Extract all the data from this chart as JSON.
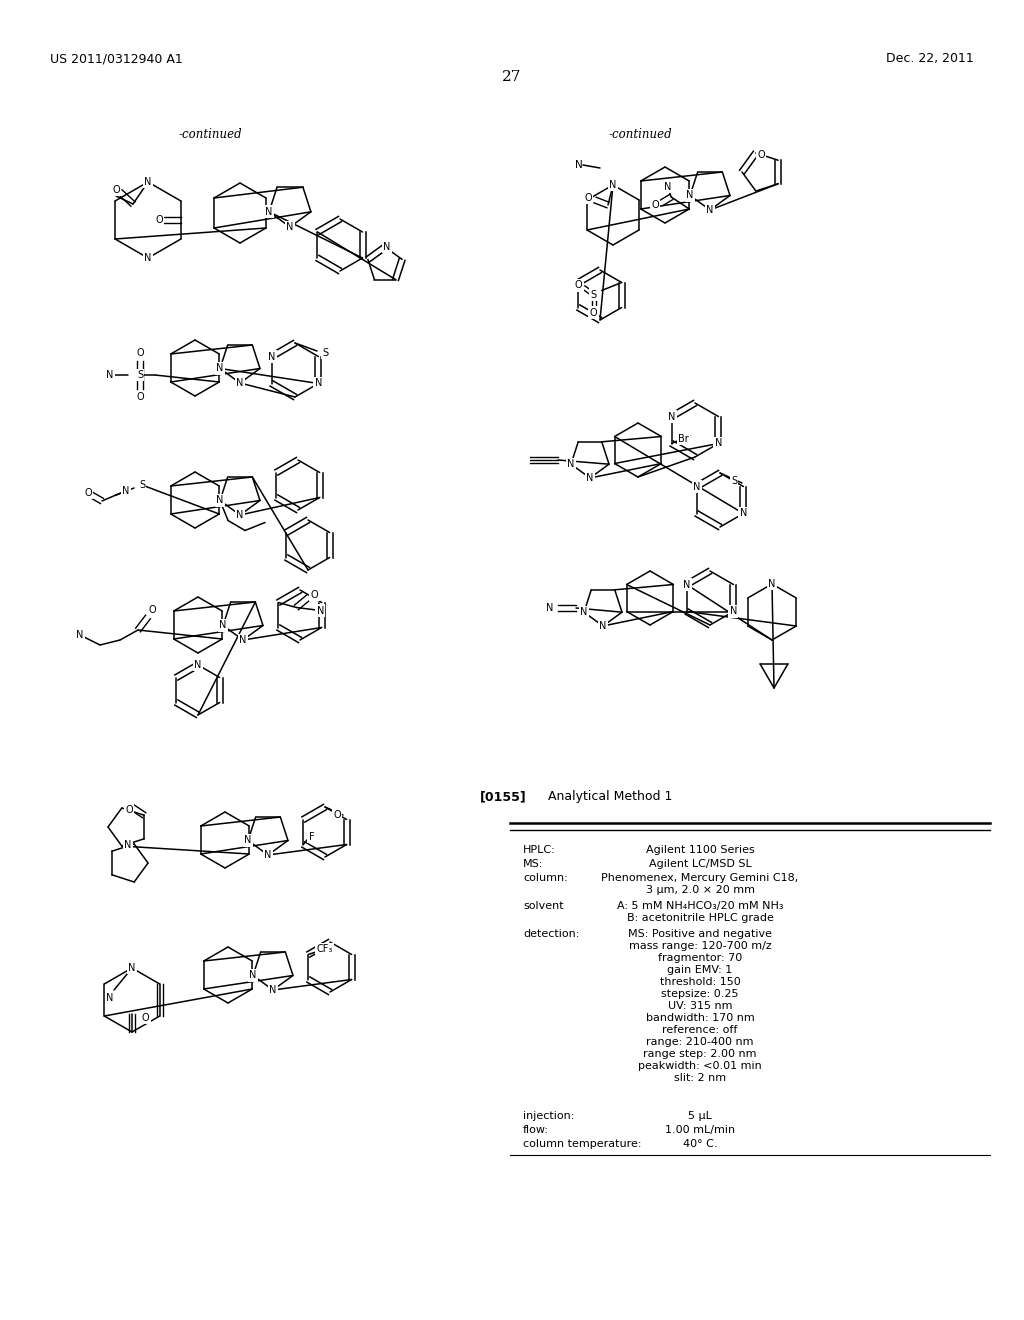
{
  "page_number": "27",
  "header_left": "US 2011/0312940 A1",
  "header_right": "Dec. 22, 2011",
  "continued_left": "-continued",
  "continued_right": "-continued",
  "paragraph_label": "[0155]",
  "paragraph_title": "Analytical Method 1",
  "bg_color": "#ffffff",
  "text_color": "#000000",
  "table_entries": [
    {
      "label": "HPLC:",
      "value": "Agilent 1100 Series"
    },
    {
      "label": "MS:",
      "value": "Agilent LC/MSD SL"
    },
    {
      "label": "column:",
      "value": "Phenomenex, Mercury Gemini C18,\n3 μm, 2.0 × 20 mm"
    },
    {
      "label": "solvent",
      "value": "A: 5 mM NH₄HCO₃/20 mM NH₃\nB: acetonitrile HPLC grade"
    },
    {
      "label": "detection:",
      "value": "MS: Positive and negative\nmass range: 120-700 m/z\nfragmentor: 70\ngain EMV: 1\nthreshold: 150\nstepsize: 0.25\nUV: 315 nm\nbandwidth: 170 nm\nreference: off\nrange: 210-400 nm\nrange step: 2.00 nm\npeakwidth: <0.01 min\nslit: 2 nm"
    },
    {
      "label": "injection:",
      "value": "5 μL"
    },
    {
      "label": "flow:",
      "value": "1.00 mL/min"
    },
    {
      "label": "column temperature:",
      "value": "40° C."
    }
  ]
}
